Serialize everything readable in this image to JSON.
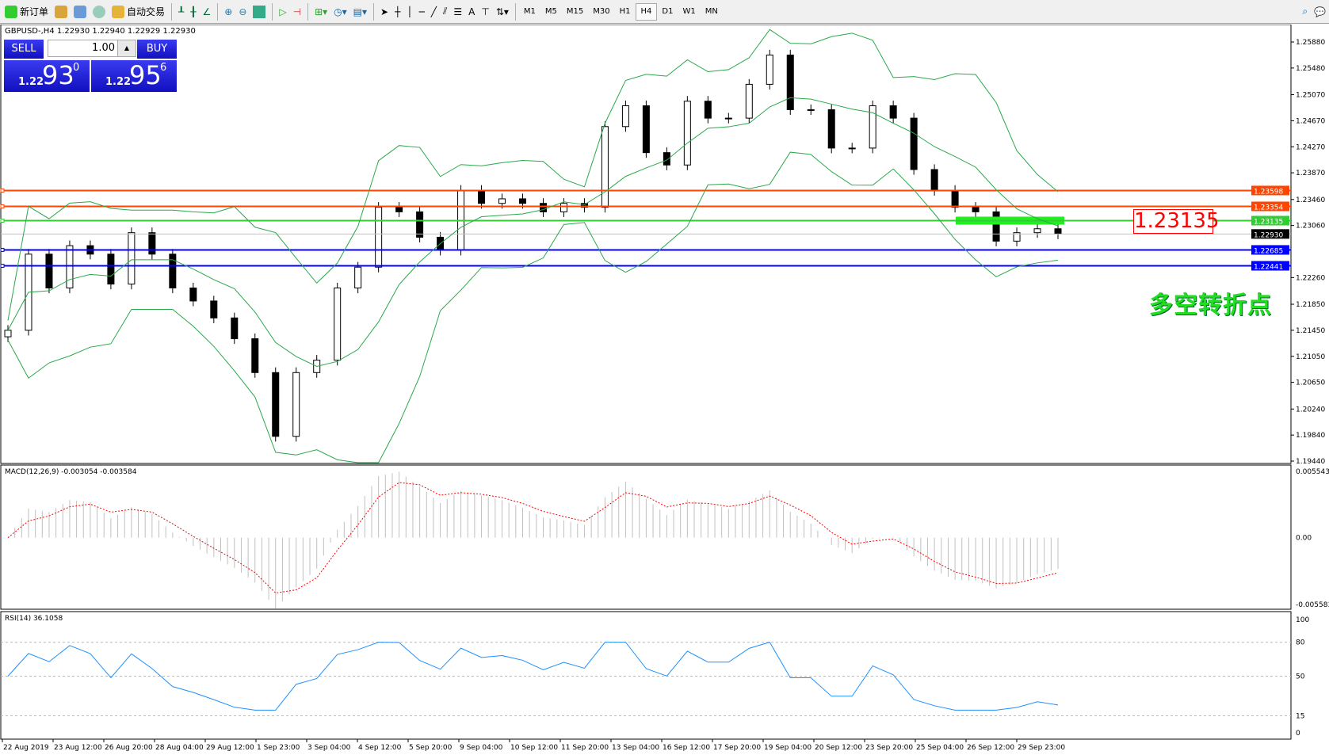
{
  "toolbar": {
    "new_order": "新订单",
    "auto_trading": "自动交易",
    "timeframes": [
      "M1",
      "M5",
      "M15",
      "M30",
      "H1",
      "H4",
      "D1",
      "W1",
      "MN"
    ],
    "active_timeframe": "H4"
  },
  "chart": {
    "header": "GBPUSD-,H4  1.22930 1.22940 1.22929 1.22930",
    "trade_panel": {
      "sell": "SELL",
      "buy": "BUY",
      "lot": "1.00",
      "sell_prefix": "1.22",
      "sell_big": "93",
      "sell_sup": "0",
      "buy_prefix": "1.22",
      "buy_big": "95",
      "buy_sup": "6"
    },
    "signal_label": "1.23135",
    "annotation": "多空转折点"
  },
  "chart_data": {
    "type": "candlestick",
    "symbol": "GBPUSD",
    "timeframe": "H4",
    "ylim": [
      1.1944,
      1.2588
    ],
    "price_ticks": [
      "1.25880",
      "1.25480",
      "1.25070",
      "1.24670",
      "1.24270",
      "1.23870",
      "1.23460",
      "1.23060",
      "1.22260",
      "1.21850",
      "1.21450",
      "1.21050",
      "1.20650",
      "1.20240",
      "1.19840",
      "1.19440"
    ],
    "closes": [
      1.2145,
      1.2262,
      1.221,
      1.2275,
      1.2262,
      1.2216,
      1.2295,
      1.2262,
      1.221,
      1.219,
      1.2164,
      1.2132,
      1.208,
      1.1982,
      1.208,
      1.2099,
      1.221,
      1.2242,
      1.2334,
      1.2327,
      1.2288,
      1.2268,
      1.236,
      1.234,
      1.2347,
      1.234,
      1.2327,
      1.234,
      1.2334,
      1.2458,
      1.249,
      1.2418,
      1.2399,
      1.2497,
      1.2471,
      1.2471,
      1.2523,
      1.2568,
      1.2484,
      1.2484,
      1.2425,
      1.2425,
      1.249,
      1.2471,
      1.2392,
      1.236,
      1.2334,
      1.2327,
      1.2282,
      1.2295,
      1.2301,
      1.2293
    ],
    "hlines": [
      {
        "price": "1.23598",
        "color": "#ff4500"
      },
      {
        "price": "1.23354",
        "color": "#ff4500"
      },
      {
        "price": "1.23135",
        "color": "#33cc33"
      },
      {
        "price": "1.22930",
        "color": "#000000",
        "bid": true
      },
      {
        "price": "1.22685",
        "color": "#0000ff"
      },
      {
        "price": "1.22441",
        "color": "#0000ff"
      }
    ],
    "bollinger_color": "#2aa84a",
    "macd": {
      "label": "MACD(12,26,9) -0.003054 -0.003584",
      "ylim": [
        -0.005583,
        0.005543
      ],
      "ticks": [
        "0.005543",
        "0.00",
        "-0.005583"
      ],
      "signal_color": "#ff0000",
      "hist_color": "#c0c0c0"
    },
    "rsi": {
      "label": "RSI(14) 36.1058",
      "ylim": [
        0,
        100
      ],
      "levels": [
        80,
        50,
        15
      ],
      "ticks": [
        "100",
        "80",
        "50",
        "15",
        "0"
      ],
      "color": "#1e90ff"
    },
    "time_labels": [
      "22 Aug 2019",
      "23 Aug 12:00",
      "26 Aug 20:00",
      "28 Aug 04:00",
      "29 Aug 12:00",
      "1 Sep 23:00",
      "3 Sep 04:00",
      "4 Sep 12:00",
      "5 Sep 20:00",
      "9 Sep 04:00",
      "10 Sep 12:00",
      "11 Sep 20:00",
      "13 Sep 04:00",
      "16 Sep 12:00",
      "17 Sep 20:00",
      "19 Sep 04:00",
      "20 Sep 12:00",
      "23 Sep 20:00",
      "25 Sep 04:00",
      "26 Sep 12:00",
      "29 Sep 23:00"
    ]
  }
}
